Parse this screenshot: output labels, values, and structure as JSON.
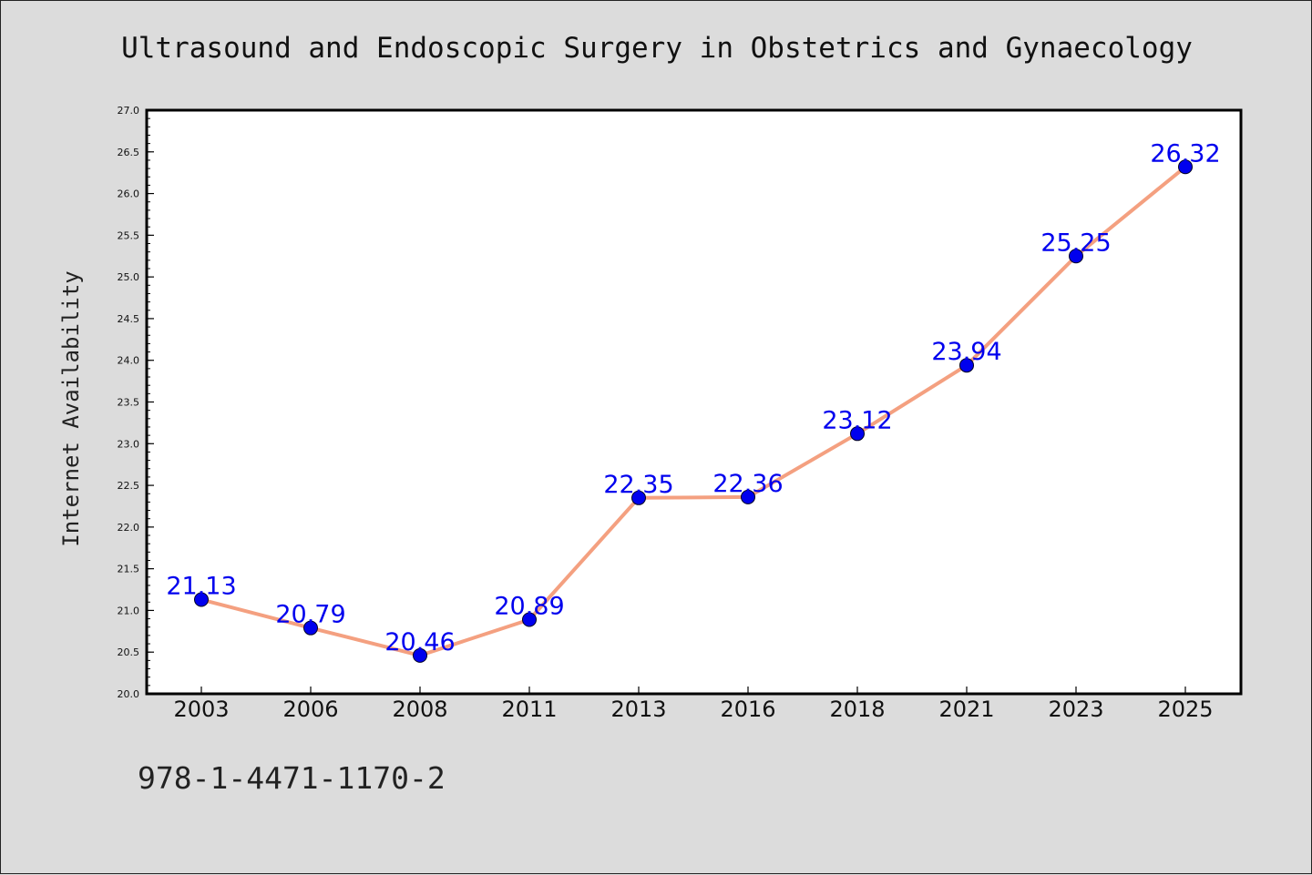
{
  "chart_data": {
    "type": "line",
    "title": "Ultrasound and Endoscopic Surgery in Obstetrics and Gynaecology",
    "xlabel": "",
    "ylabel": "Internet Availability",
    "categories": [
      "2003",
      "2006",
      "2008",
      "2011",
      "2013",
      "2016",
      "2018",
      "2021",
      "2023",
      "2025"
    ],
    "series": [
      {
        "values": [
          21.13,
          20.79,
          20.46,
          20.89,
          22.35,
          22.36,
          23.12,
          23.94,
          25.25,
          26.32
        ],
        "data_labels": [
          "21.13",
          "20.79",
          "20.46",
          "20.89",
          "22.35",
          "22.36",
          "23.12",
          "23.94",
          "25.25",
          "26.32"
        ]
      }
    ],
    "ylim": [
      20.0,
      27.0
    ],
    "yticks": [
      "20.0",
      "20.5",
      "21.0",
      "21.5",
      "22.0",
      "22.5",
      "23.0",
      "23.5",
      "24.0",
      "24.5",
      "25.0",
      "25.5",
      "26.0",
      "26.5",
      "27.0"
    ],
    "grid": false,
    "line_color": "#f4a080",
    "marker_color": "#0000ee",
    "label_color": "#0000ee"
  },
  "footer": {
    "text": "978-1-4471-1170-2"
  }
}
